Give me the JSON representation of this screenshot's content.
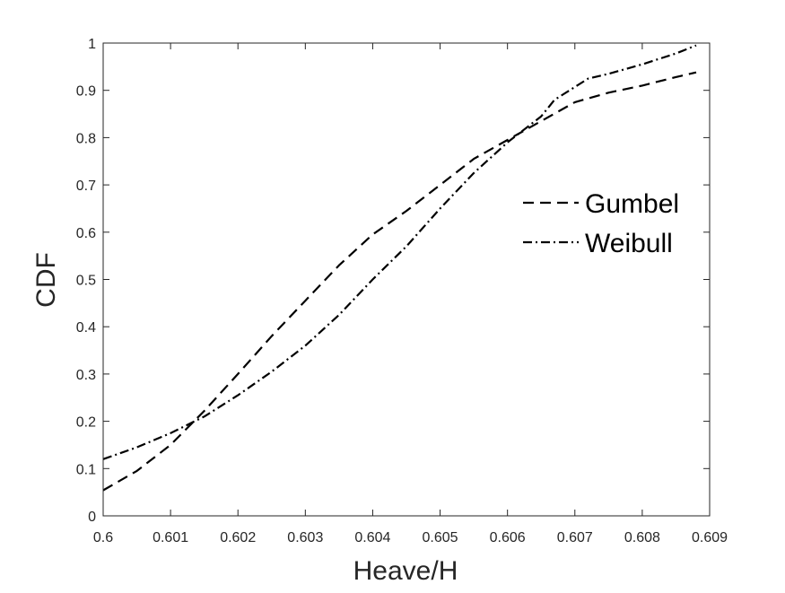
{
  "chart_data": {
    "type": "line",
    "title": "",
    "xlabel": "Heave/H",
    "ylabel": "CDF",
    "xlim": [
      0.6,
      0.609
    ],
    "ylim": [
      0,
      1
    ],
    "xticks": [
      0.6,
      0.601,
      0.602,
      0.603,
      0.604,
      0.605,
      0.606,
      0.607,
      0.608,
      0.609
    ],
    "xtick_labels": [
      "0.6",
      "0.601",
      "0.602",
      "0.603",
      "0.604",
      "0.605",
      "0.606",
      "0.607",
      "0.608",
      "0.609"
    ],
    "yticks": [
      0,
      0.1,
      0.2,
      0.3,
      0.4,
      0.5,
      0.6,
      0.7,
      0.8,
      0.9,
      1
    ],
    "ytick_labels": [
      "0",
      "0.1",
      "0.2",
      "0.3",
      "0.4",
      "0.5",
      "0.6",
      "0.7",
      "0.8",
      "0.9",
      "1"
    ],
    "grid": false,
    "legend_position": "right",
    "series": [
      {
        "name": "Gumbel",
        "line_style": "dashed",
        "color": "#000000",
        "x": [
          0.6,
          0.6005,
          0.601,
          0.6015,
          0.602,
          0.6025,
          0.603,
          0.6035,
          0.604,
          0.6045,
          0.605,
          0.6055,
          0.606,
          0.6065,
          0.607,
          0.6075,
          0.608,
          0.6085,
          0.6088
        ],
        "y": [
          0.054,
          0.095,
          0.15,
          0.222,
          0.3,
          0.38,
          0.455,
          0.53,
          0.595,
          0.645,
          0.7,
          0.755,
          0.795,
          0.835,
          0.875,
          0.895,
          0.91,
          0.928,
          0.938
        ]
      },
      {
        "name": "Weibull",
        "line_style": "dash-dot",
        "color": "#000000",
        "x": [
          0.6,
          0.6005,
          0.601,
          0.6015,
          0.602,
          0.6025,
          0.603,
          0.6035,
          0.604,
          0.6045,
          0.605,
          0.6055,
          0.606,
          0.6065,
          0.6067,
          0.6072,
          0.6075,
          0.608,
          0.6085,
          0.6088
        ],
        "y": [
          0.12,
          0.145,
          0.175,
          0.21,
          0.255,
          0.305,
          0.36,
          0.425,
          0.5,
          0.57,
          0.65,
          0.725,
          0.79,
          0.845,
          0.88,
          0.925,
          0.935,
          0.955,
          0.978,
          0.995
        ]
      }
    ]
  }
}
